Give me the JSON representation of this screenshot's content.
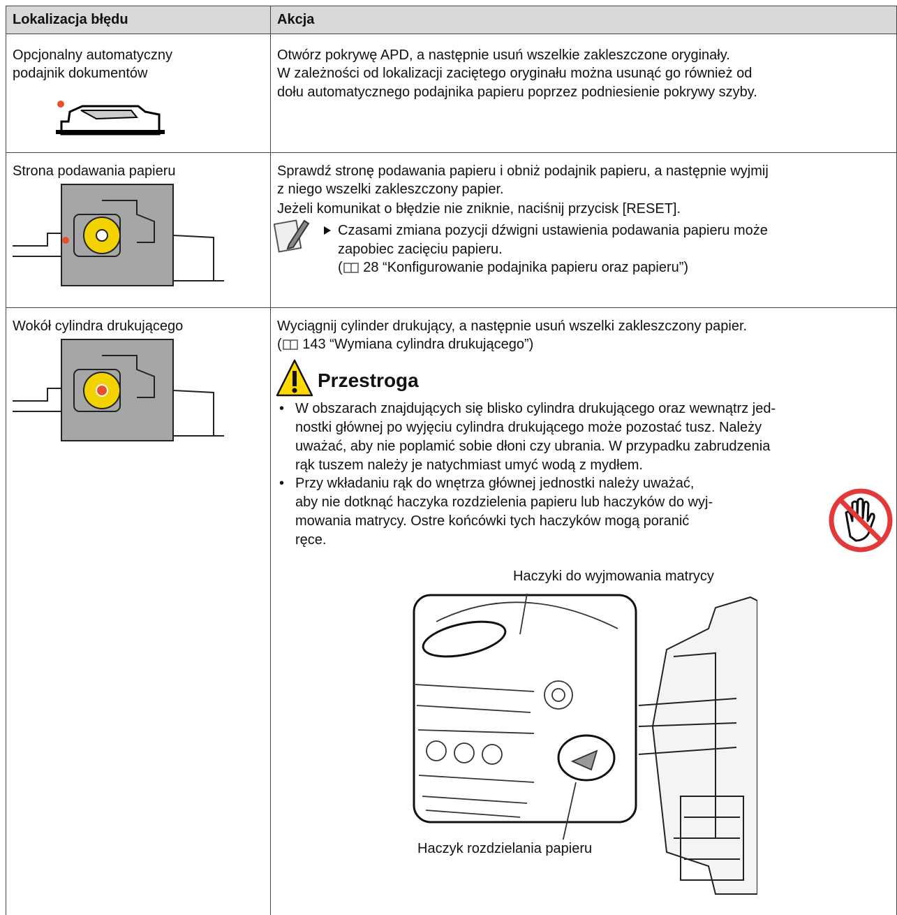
{
  "table": {
    "header": [
      "Lokalizacja błędu",
      "Akcja"
    ],
    "rows": [
      {
        "location": [
          "Opcjonalny automatyczny",
          "podajnik dokumentów"
        ],
        "action": [
          "Otwórz pokrywę APD, a następnie usuń wszelkie zakleszczone oryginały.",
          "W zależności od lokalizacji zaciętego oryginału można usunąć go również od",
          "dołu automatycznego podajnika papieru poprzez podniesienie pokrywy szyby."
        ]
      },
      {
        "location": [
          "Strona podawania papieru"
        ],
        "action": [
          "Sprawdź stronę podawania papieru i obniż podajnik papieru, a następnie wyjmij",
          "z niego wszelki zakleszczony papier.",
          "Jeżeli komunikat o błędzie nie zniknie, naciśnij przycisk [RESET]."
        ],
        "note": [
          "Czasami zmiana pozycji dźwigni ustawienia podawania papieru może",
          "zapobiec zacięciu papieru."
        ],
        "ref_open": "(",
        "ref": "28 “Konfigurowanie podajnika papieru oraz papieru”)"
      },
      {
        "location": [
          "Wokół cylindra drukującego"
        ],
        "action": [
          "Wyciągnij cylinder drukujący, a następnie usuń wszelki zakleszczony papier."
        ],
        "ref_open": "(",
        "ref": "143 “Wymiana cylindra drukującego”)",
        "caution_title": "Przestroga",
        "bullet_mark": "•",
        "bullets": [
          [
            "W obszarach znajdujących się blisko cylindra drukującego oraz wewnątrz jed-",
            "nostki głównej po wyjęciu cylindra drukującego może pozostać tusz. Należy",
            "uważać, aby nie poplamić sobie dłoni czy ubrania. W przypadku zabrudzenia",
            "rąk tuszem należy je natychmiast umyć wodą z mydłem."
          ],
          [
            "Przy wkładaniu rąk do wnętrza głównej jednostki należy uważać,",
            "aby nie dotknąć haczyka rozdzielenia papieru lub haczyków do wyj-",
            "mowania matrycy. Ostre końcówki tych haczyków mogą poranić",
            "ręce."
          ]
        ],
        "figure_labels": [
          "Haczyki do wyjmowania matrycy",
          "Haczyk rozdzielania papieru"
        ]
      }
    ]
  }
}
